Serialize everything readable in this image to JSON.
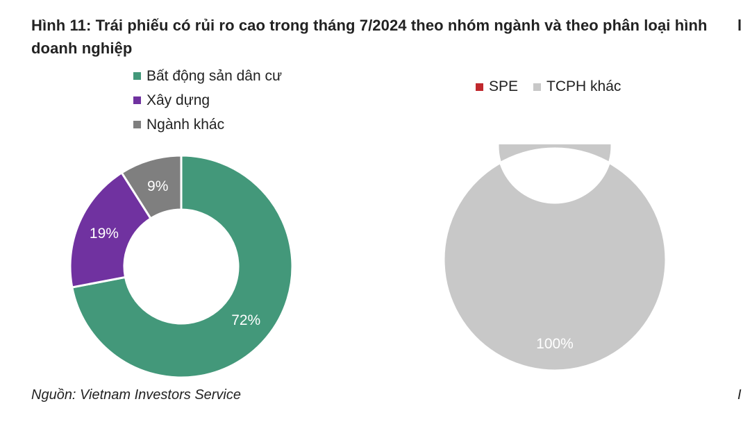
{
  "title": "Hình 11: Trái phiếu có rủi ro cao trong tháng 7/2024 theo nhóm ngành và theo phân loại hình doanh nghiệp",
  "source": "Nguồn: Vietnam Investors Service",
  "cut_title": "l",
  "cut_source": "I",
  "chart_data": [
    {
      "type": "pie",
      "donut": true,
      "title": "",
      "legend_position": "top",
      "categories": [
        "Bất động sản dân cư",
        "Xây dựng",
        "Ngành khác"
      ],
      "values": [
        72,
        19,
        9
      ],
      "labels": [
        "72%",
        "19%",
        "9%"
      ],
      "colors": [
        "#43987a",
        "#7032a0",
        "#7f7f7f"
      ]
    },
    {
      "type": "pie",
      "donut": true,
      "title": "",
      "legend_position": "top",
      "categories": [
        "SPE",
        "TCPH khác"
      ],
      "values": [
        0,
        100
      ],
      "labels": [
        "",
        "100%"
      ],
      "colors": [
        "#c0282d",
        "#c8c8c8"
      ]
    }
  ]
}
